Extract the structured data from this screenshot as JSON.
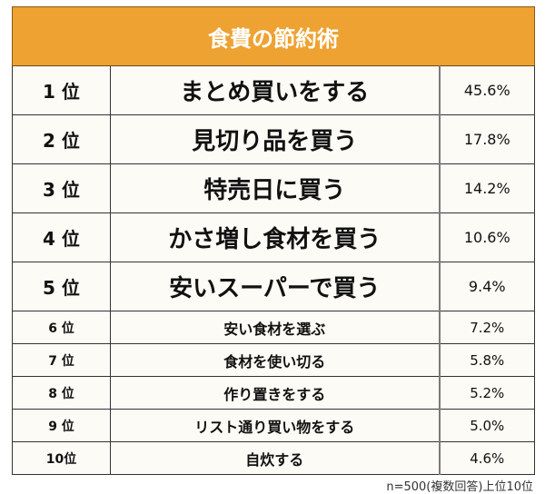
{
  "title": "食費の節約術",
  "header_color": "#EEA232",
  "rows": [
    {
      "rank": "1 位",
      "item": "まとめ買いをする",
      "percent": "45.6%"
    },
    {
      "rank": "2 位",
      "item": "見切り品を買う",
      "percent": "17.8%"
    },
    {
      "rank": "3 位",
      "item": "特売日に買う",
      "percent": "14.2%"
    },
    {
      "rank": "4 位",
      "item": "かさ増し食材を買う",
      "percent": "10.6%"
    },
    {
      "rank": "5 位",
      "item": "安いスーパーで買う",
      "percent": "9.4%"
    },
    {
      "rank": "6 位",
      "item": "安い食材を選ぶ",
      "percent": "7.2%"
    },
    {
      "rank": "7 位",
      "item": "食材を使い切る",
      "percent": "5.8%"
    },
    {
      "rank": "8 位",
      "item": "作り置きをする",
      "percent": "5.2%"
    },
    {
      "rank": "9 位",
      "item": "リスト通り買い物をする",
      "percent": "5.0%"
    },
    {
      "rank": "10位",
      "item": "自炊する",
      "percent": "4.6%"
    }
  ],
  "footnote": "n=500(複数回答)上位10位"
}
